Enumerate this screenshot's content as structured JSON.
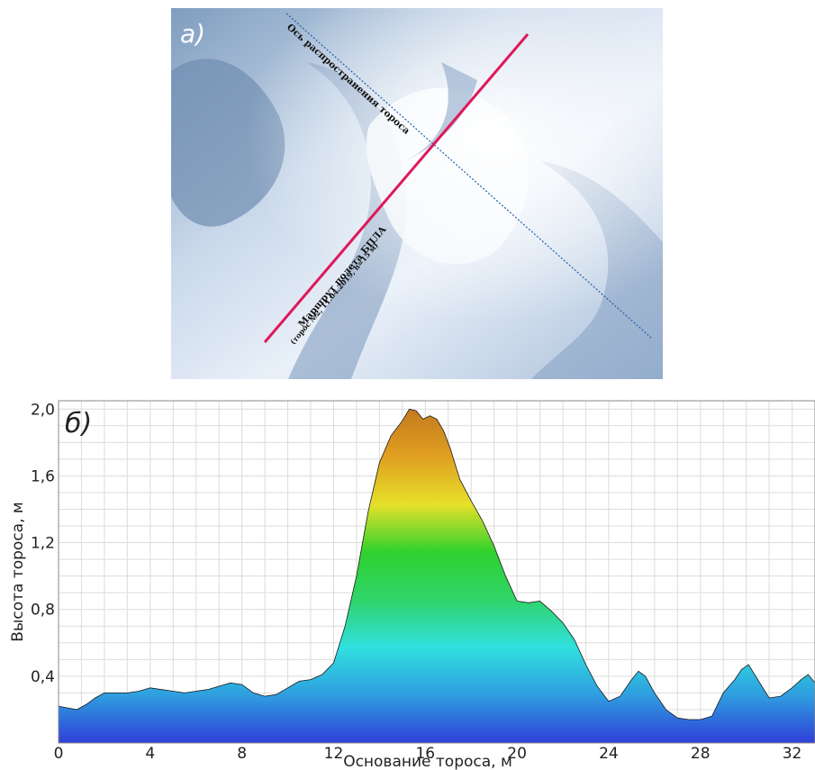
{
  "photo": {
    "panel_label": "а)",
    "axis_label": "Ось распространения тороса",
    "route_label": "Маршрут полета БПЛА",
    "route_sublabel": "(торос №2, 11.04.2019, h=15 м)",
    "colors": {
      "route": "#e0185a",
      "axis": "#1f5fa8"
    }
  },
  "chart_data": {
    "type": "area",
    "panel_label": "б)",
    "xlabel": "Основание тороса, м",
    "ylabel": "Высота тороса, м",
    "xlim": [
      0,
      33
    ],
    "ylim": [
      0,
      2.05
    ],
    "xticks": [
      0,
      4,
      8,
      12,
      16,
      20,
      24,
      28,
      32
    ],
    "xtick_labels": [
      "0",
      "4",
      "8",
      "12",
      "16",
      "20",
      "24",
      "28",
      "32"
    ],
    "yticks": [
      0.4,
      0.8,
      1.2,
      1.6,
      2.0
    ],
    "ytick_labels": [
      "0,4",
      "0,8",
      "1,2",
      "1,6",
      "2,0"
    ],
    "grid": true,
    "fill_gradient": [
      "#2f3fd8",
      "#2f9ee0",
      "#30e0e0",
      "#2fd46a",
      "#2ed12e",
      "#e6e02a",
      "#e0a020",
      "#c57a1f"
    ],
    "series": [
      {
        "x": [
          0,
          0.4,
          0.8,
          1.2,
          1.6,
          2.0,
          2.5,
          3.0,
          3.5,
          4.0,
          4.5,
          5.0,
          5.5,
          6.0,
          6.5,
          7.0,
          7.5,
          8.0,
          8.5,
          9.0,
          9.5,
          10.0,
          10.5,
          11.0,
          11.5,
          12.0,
          12.5,
          13.0,
          13.5,
          14.0,
          14.5,
          15.0,
          15.3,
          15.6,
          15.9,
          16.2,
          16.5,
          16.8,
          17.1,
          17.5,
          18.0,
          18.5,
          19.0,
          19.5,
          20.0,
          20.5,
          21.0,
          21.5,
          22.0,
          22.5,
          23.0,
          23.5,
          24.0,
          24.5,
          25.0,
          25.3,
          25.6,
          26.0,
          26.5,
          27.0,
          27.5,
          28.0,
          28.5,
          29.0,
          29.5,
          29.8,
          30.1,
          30.5,
          31.0,
          31.5,
          32.0,
          32.4,
          32.7,
          33.0
        ],
        "y": [
          0.22,
          0.21,
          0.2,
          0.23,
          0.27,
          0.3,
          0.3,
          0.3,
          0.31,
          0.33,
          0.32,
          0.31,
          0.3,
          0.31,
          0.32,
          0.34,
          0.36,
          0.35,
          0.3,
          0.28,
          0.29,
          0.33,
          0.37,
          0.38,
          0.41,
          0.48,
          0.7,
          1.0,
          1.38,
          1.68,
          1.84,
          1.93,
          2.0,
          1.99,
          1.94,
          1.96,
          1.94,
          1.87,
          1.76,
          1.58,
          1.45,
          1.33,
          1.18,
          1.0,
          0.85,
          0.84,
          0.85,
          0.79,
          0.72,
          0.62,
          0.47,
          0.34,
          0.25,
          0.28,
          0.38,
          0.43,
          0.4,
          0.3,
          0.2,
          0.15,
          0.14,
          0.14,
          0.16,
          0.3,
          0.38,
          0.44,
          0.47,
          0.38,
          0.27,
          0.28,
          0.33,
          0.38,
          0.41,
          0.36
        ]
      }
    ]
  }
}
